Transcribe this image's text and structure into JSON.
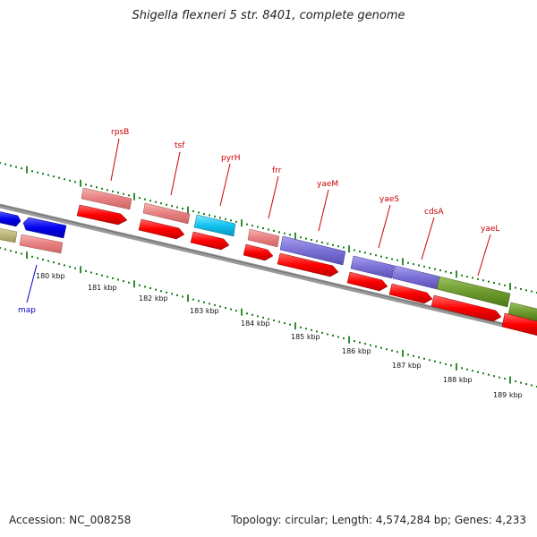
{
  "header": {
    "title": "Shigella flexneri 5 str. 8401, complete genome"
  },
  "footer": {
    "accession": "Accession: NC_008258",
    "stats": "Topology: circular; Length: 4,574,284 bp; Genes: 4,233"
  },
  "colors": {
    "backbone": "#808080",
    "tick": "#007000",
    "gene_label": "#cc0000",
    "forward_label": "#0000cc"
  },
  "kbp_labels": [
    "180 kbp",
    "181 kbp",
    "182 kbp",
    "183 kbp",
    "184 kbp",
    "185 kbp",
    "186 kbp",
    "187 kbp",
    "188 kbp",
    "189 kbp"
  ],
  "genes": [
    {
      "name": "map",
      "label_color": "#0000cc"
    },
    {
      "name": "rpsB",
      "label_color": "#cc0000"
    },
    {
      "name": "tsf",
      "label_color": "#cc0000"
    },
    {
      "name": "pyrH",
      "label_color": "#cc0000"
    },
    {
      "name": "frr",
      "label_color": "#cc0000"
    },
    {
      "name": "yaeM",
      "label_color": "#cc0000"
    },
    {
      "name": "yaeS",
      "label_color": "#cc0000"
    },
    {
      "name": "cdsA",
      "label_color": "#cc0000"
    },
    {
      "name": "yaeL",
      "label_color": "#cc0000"
    }
  ]
}
